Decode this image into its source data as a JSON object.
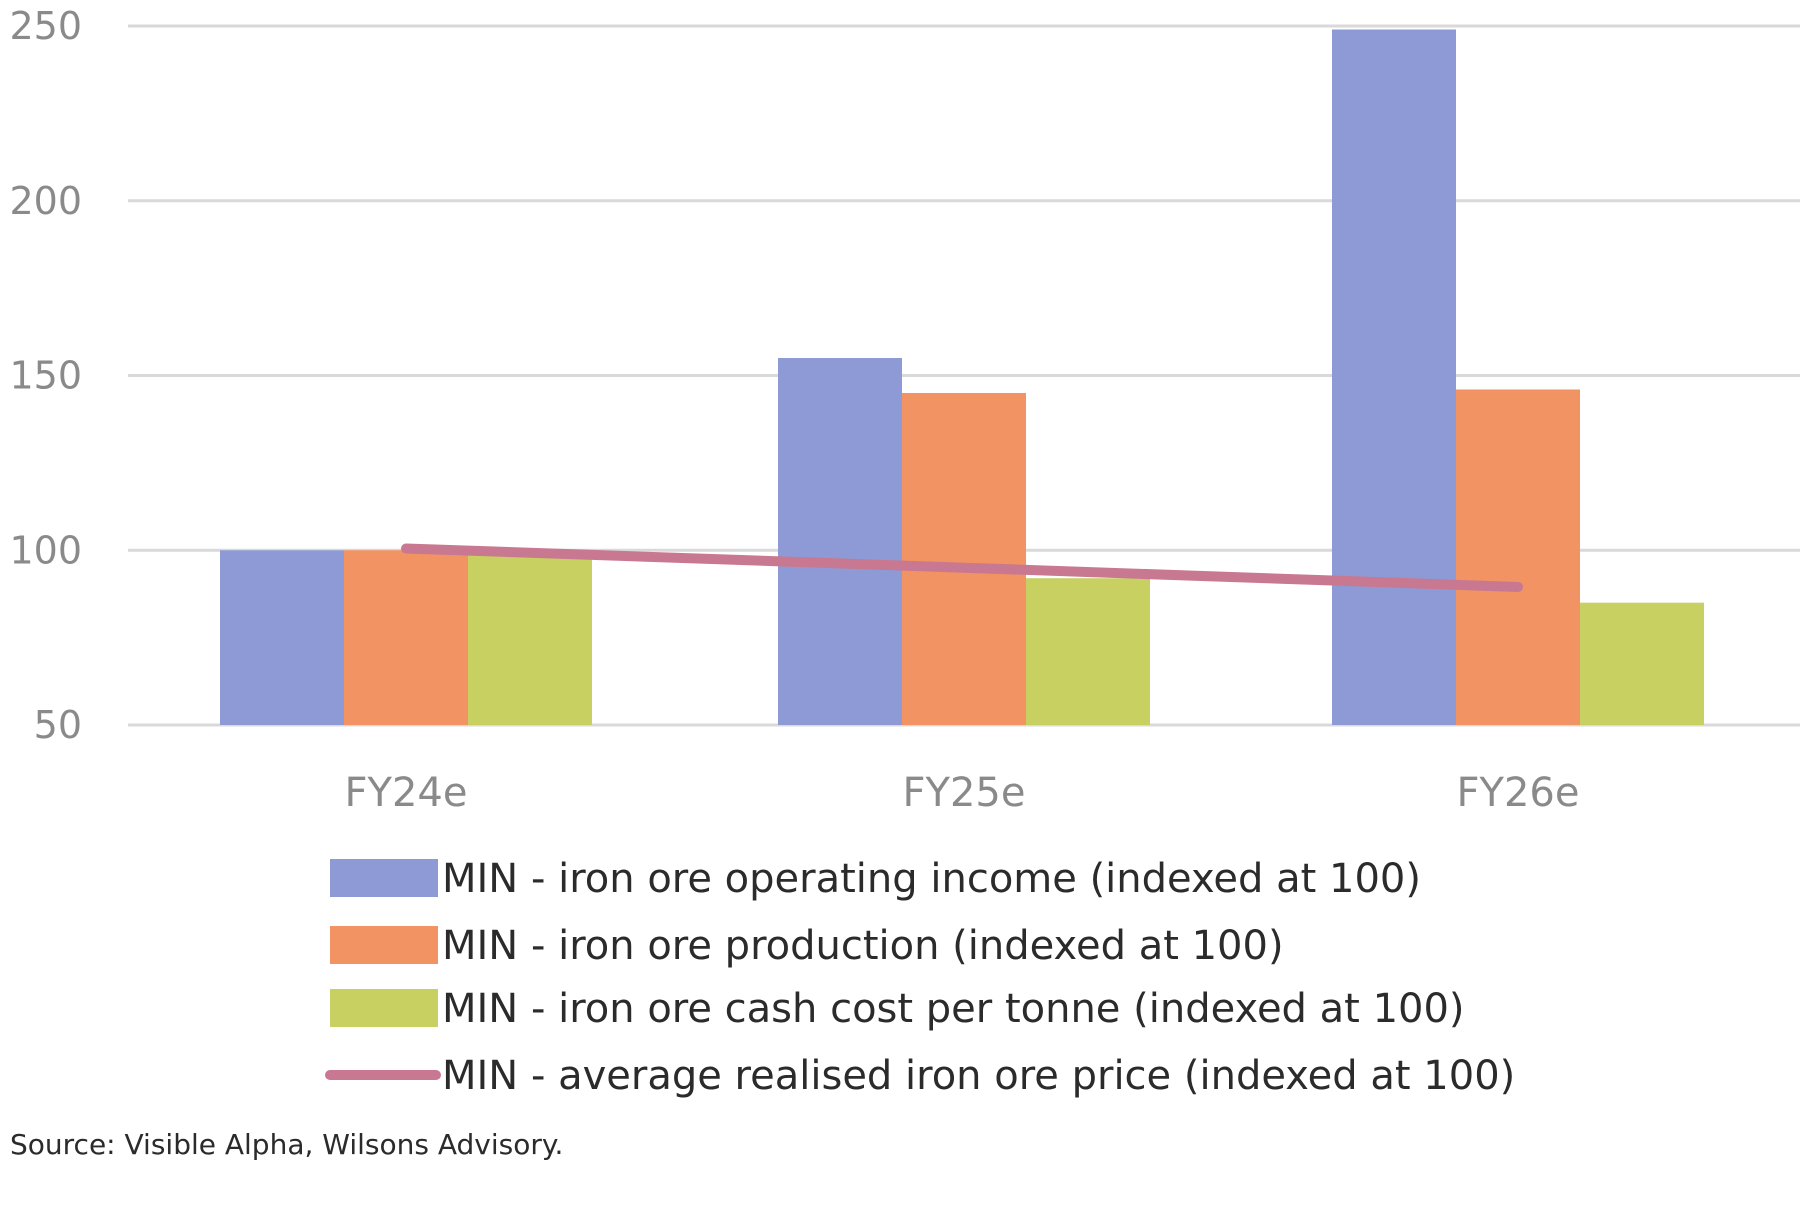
{
  "chart_data": {
    "type": "bar",
    "title": "",
    "xlabel": "",
    "ylabel": "",
    "ylim": [
      50,
      250
    ],
    "yticks": [
      50,
      100,
      150,
      200,
      250
    ],
    "grid": true,
    "legend_position": "bottom",
    "categories": [
      "FY24e",
      "FY25e",
      "FY26e"
    ],
    "series": [
      {
        "name": "MIN - iron ore operating income (indexed at 100)",
        "type": "bar",
        "color": "#8e9ad6",
        "values": [
          100,
          155,
          249
        ]
      },
      {
        "name": "MIN - iron ore production (indexed at 100)",
        "type": "bar",
        "color": "#f29363",
        "values": [
          100,
          145,
          146
        ]
      },
      {
        "name": "MIN - iron ore cash cost per tonne (indexed at 100)",
        "type": "bar",
        "color": "#c8d062",
        "values": [
          100,
          92,
          85
        ]
      },
      {
        "name": "MIN - average realised iron ore price (indexed at 100)",
        "type": "line",
        "color": "#c87890",
        "values": [
          100.5,
          95,
          89.5
        ]
      }
    ]
  },
  "source_note": "Source: Visible Alpha, Wilsons Advisory."
}
